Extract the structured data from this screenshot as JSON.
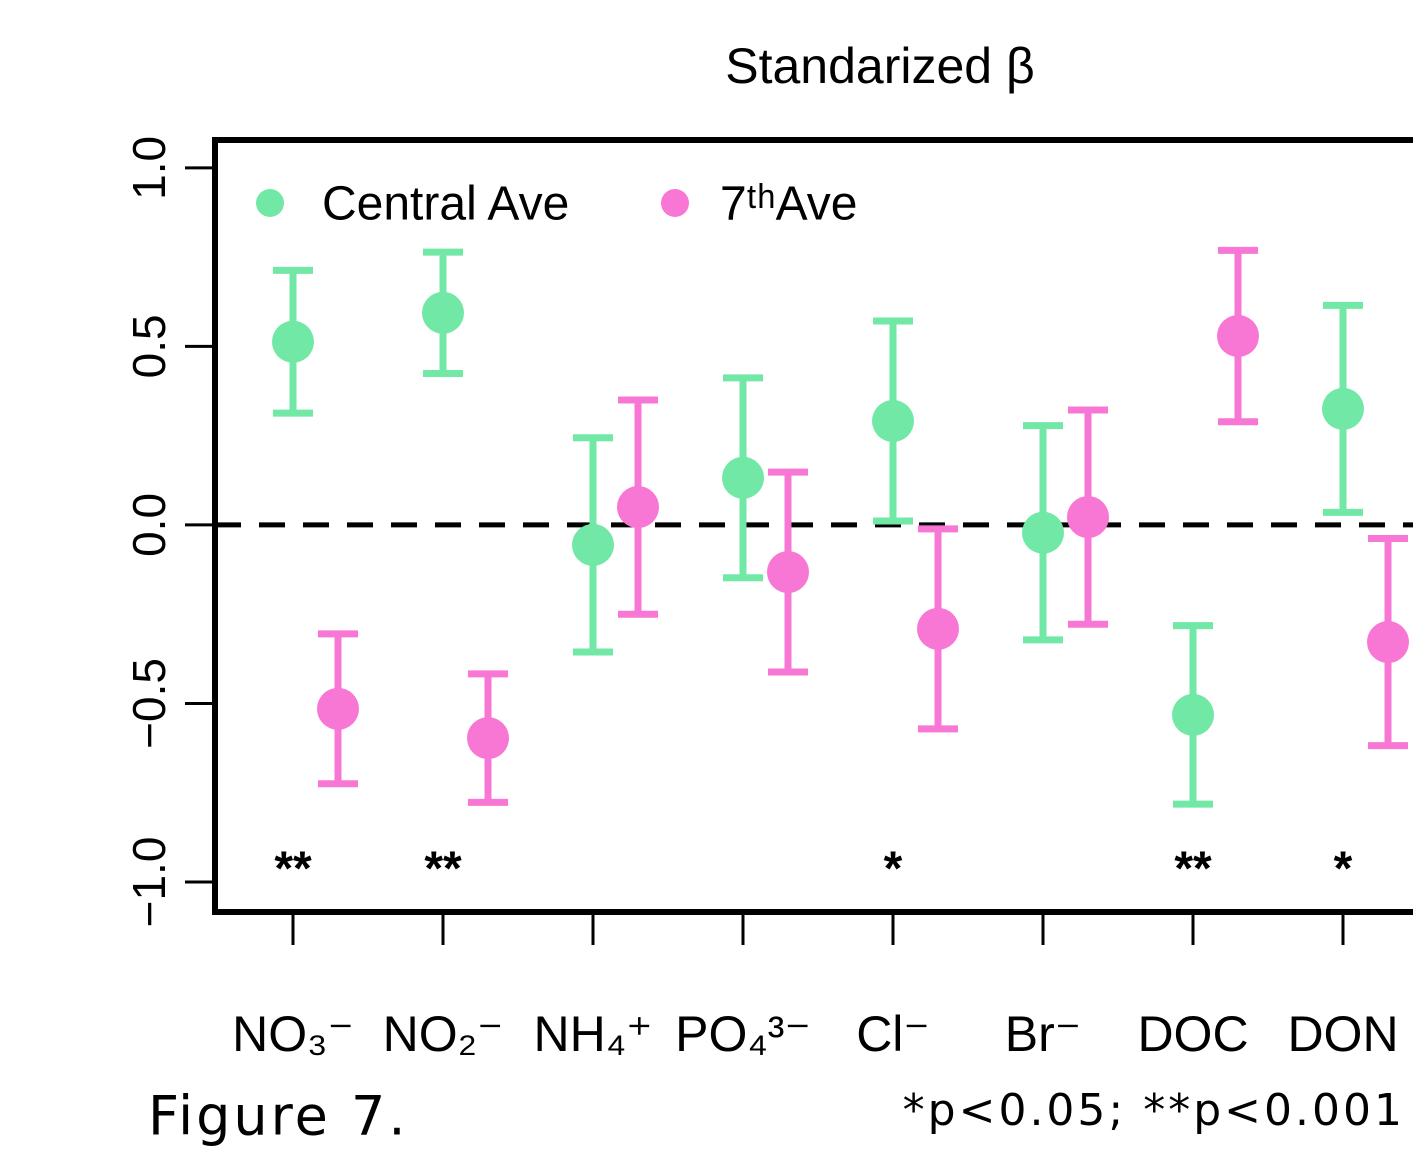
{
  "chart_data": {
    "type": "errorbar",
    "title": "Standarized β",
    "categories": [
      "NO₃⁻",
      "NO₂⁻",
      "NH₄⁺",
      "PO₄³⁻",
      "Cl⁻",
      "Br⁻",
      "DOC",
      "DON"
    ],
    "series": [
      {
        "name": "Central Ave",
        "color": "#72e8a6",
        "values": [
          0.513,
          0.594,
          -0.056,
          0.132,
          0.291,
          -0.022,
          -0.532,
          0.325
        ],
        "errors": [
          0.2,
          0.17,
          0.3,
          0.28,
          0.28,
          0.3,
          0.25,
          0.29
        ]
      },
      {
        "name": "7ᵗʰAve",
        "color": "#f877d4",
        "values": [
          -0.515,
          -0.597,
          0.05,
          -0.132,
          -0.291,
          0.022,
          0.529,
          -0.328
        ],
        "errors": [
          0.21,
          0.18,
          0.3,
          0.28,
          0.28,
          0.3,
          0.24,
          0.29
        ]
      }
    ],
    "significance": [
      "**",
      "**",
      null,
      null,
      "*",
      null,
      "**",
      "*"
    ],
    "ylim": [
      -1.084,
      1.078
    ],
    "yticks": [
      {
        "value": -1,
        "label": "−1.0"
      },
      {
        "value": -0.5,
        "label": "−0.5"
      },
      {
        "value": 0,
        "label": "0.0"
      },
      {
        "value": 0.5,
        "label": "0.5"
      },
      {
        "value": 1,
        "label": "1.0"
      }
    ],
    "reference_line": 0,
    "legend": "top-left",
    "caption": "Figure 7.",
    "footnote": "*p<0.05; **p<0.001"
  }
}
